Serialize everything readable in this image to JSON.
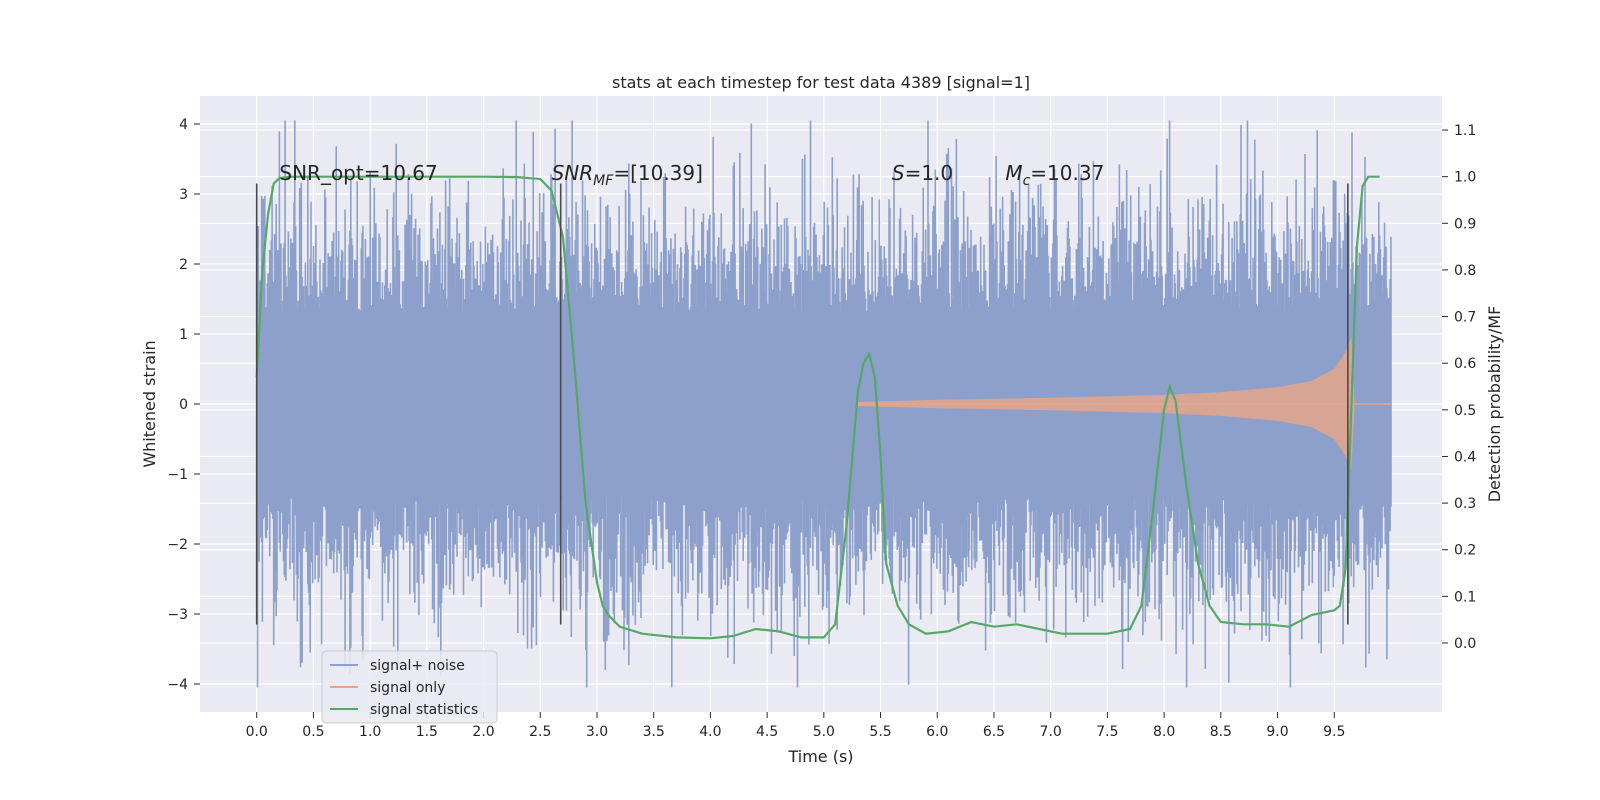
{
  "chart_data": {
    "type": "line",
    "title": "stats at each timestep for test data 4389 [signal=1]",
    "xlabel": "Time (s)",
    "ylabel": "Whitened strain",
    "y2label": "Detection probability/MF",
    "xlim": [
      -0.5,
      10.45
    ],
    "ylim": [
      -4.4,
      4.4
    ],
    "y2lim": [
      -0.148,
      1.173
    ],
    "xticks": [
      0.0,
      0.5,
      1.0,
      1.5,
      2.0,
      2.5,
      3.0,
      3.5,
      4.0,
      4.5,
      5.0,
      5.5,
      6.0,
      6.5,
      7.0,
      7.5,
      8.0,
      8.5,
      9.0,
      9.5
    ],
    "xtick_labels": [
      "0.0",
      "0.5",
      "1.0",
      "1.5",
      "2.0",
      "2.5",
      "3.0",
      "3.5",
      "4.0",
      "4.5",
      "5.0",
      "5.5",
      "6.0",
      "6.5",
      "7.0",
      "7.5",
      "8.0",
      "8.5",
      "9.0",
      "9.5"
    ],
    "yticks": [
      -4,
      -3,
      -2,
      -1,
      0,
      1,
      2,
      3,
      4
    ],
    "ytick_labels": [
      "−4",
      "−3",
      "−2",
      "−1",
      "0",
      "1",
      "2",
      "3",
      "4"
    ],
    "y2ticks": [
      0.0,
      0.1,
      0.2,
      0.3,
      0.4,
      0.5,
      0.6,
      0.7,
      0.8,
      0.9,
      1.0,
      1.1
    ],
    "y2tick_labels": [
      "0.0",
      "0.1",
      "0.2",
      "0.3",
      "0.4",
      "0.5",
      "0.6",
      "0.7",
      "0.8",
      "0.9",
      "1.0",
      "1.1"
    ],
    "grid": true,
    "legend": {
      "position": "lower-left",
      "entries": [
        {
          "label": "signal+ noise",
          "color": "#8da0cb"
        },
        {
          "label": "signal only",
          "color": "#e5a58b"
        },
        {
          "label": "signal statistics",
          "color": "#55a868"
        }
      ]
    },
    "annotations": [
      {
        "text": "SNR_opt=10.67",
        "x": 0.2,
        "y": 3.2
      },
      {
        "text": "SNR",
        "sub": "MF",
        "suffix": "=[10.39]",
        "italic": true,
        "x": 2.6,
        "y": 3.2
      },
      {
        "text": "S",
        "suffix": "=1.0",
        "italic": true,
        "x": 5.6,
        "y": 3.2
      },
      {
        "text": "M",
        "sub": "c",
        "suffix": "=10.37",
        "italic": true,
        "x": 6.6,
        "y": 3.2
      }
    ],
    "vlines": [
      {
        "x": 0.0,
        "ymin": -3.15,
        "ymax": 3.15
      },
      {
        "x": 2.68,
        "ymin": -3.15,
        "ymax": 3.15
      },
      {
        "x": 9.62,
        "ymin": -3.15,
        "ymax": 3.15
      }
    ],
    "series": [
      {
        "name": "signal+ noise",
        "color": "#8da0cb",
        "axis": "left",
        "kind": "noise-band",
        "x_range": [
          0.0,
          10.0
        ],
        "typical_range": [
          -2.0,
          2.0
        ],
        "extremes": [
          -4.05,
          4.05
        ]
      },
      {
        "name": "signal only",
        "color": "#e5a58b",
        "axis": "left",
        "kind": "chirp-envelope",
        "x": [
          5.3,
          6.0,
          7.0,
          8.0,
          8.5,
          9.0,
          9.3,
          9.5,
          9.6,
          9.65,
          9.68,
          10.0
        ],
        "envelope": [
          0.03,
          0.06,
          0.09,
          0.13,
          0.17,
          0.24,
          0.33,
          0.5,
          0.75,
          0.95,
          0.0,
          0.0
        ]
      },
      {
        "name": "signal statistics",
        "color": "#55a868",
        "axis": "right",
        "x": [
          0.0,
          0.05,
          0.1,
          0.15,
          0.2,
          0.3,
          0.5,
          1.0,
          1.5,
          2.0,
          2.3,
          2.5,
          2.6,
          2.7,
          2.8,
          2.9,
          3.0,
          3.05,
          3.1,
          3.2,
          3.4,
          3.7,
          4.0,
          4.2,
          4.4,
          4.6,
          4.8,
          5.0,
          5.1,
          5.2,
          5.3,
          5.35,
          5.4,
          5.45,
          5.5,
          5.55,
          5.65,
          5.75,
          5.9,
          6.1,
          6.3,
          6.5,
          6.7,
          6.9,
          7.1,
          7.3,
          7.5,
          7.7,
          7.8,
          7.9,
          8.0,
          8.05,
          8.1,
          8.2,
          8.3,
          8.4,
          8.5,
          8.7,
          8.9,
          9.1,
          9.3,
          9.5,
          9.55,
          9.6,
          9.65,
          9.7,
          9.75,
          9.8,
          9.9
        ],
        "values": [
          0.57,
          0.8,
          0.92,
          0.985,
          0.997,
          1.0,
          1.0,
          1.0,
          1.0,
          1.0,
          0.999,
          0.995,
          0.97,
          0.87,
          0.6,
          0.3,
          0.13,
          0.08,
          0.06,
          0.035,
          0.02,
          0.012,
          0.01,
          0.015,
          0.03,
          0.025,
          0.012,
          0.012,
          0.04,
          0.25,
          0.54,
          0.6,
          0.62,
          0.57,
          0.4,
          0.17,
          0.08,
          0.04,
          0.02,
          0.025,
          0.045,
          0.035,
          0.04,
          0.03,
          0.02,
          0.02,
          0.02,
          0.03,
          0.08,
          0.28,
          0.5,
          0.55,
          0.52,
          0.33,
          0.17,
          0.08,
          0.045,
          0.04,
          0.04,
          0.035,
          0.06,
          0.07,
          0.08,
          0.16,
          0.5,
          0.85,
          0.98,
          1.0,
          1.0
        ]
      }
    ]
  }
}
